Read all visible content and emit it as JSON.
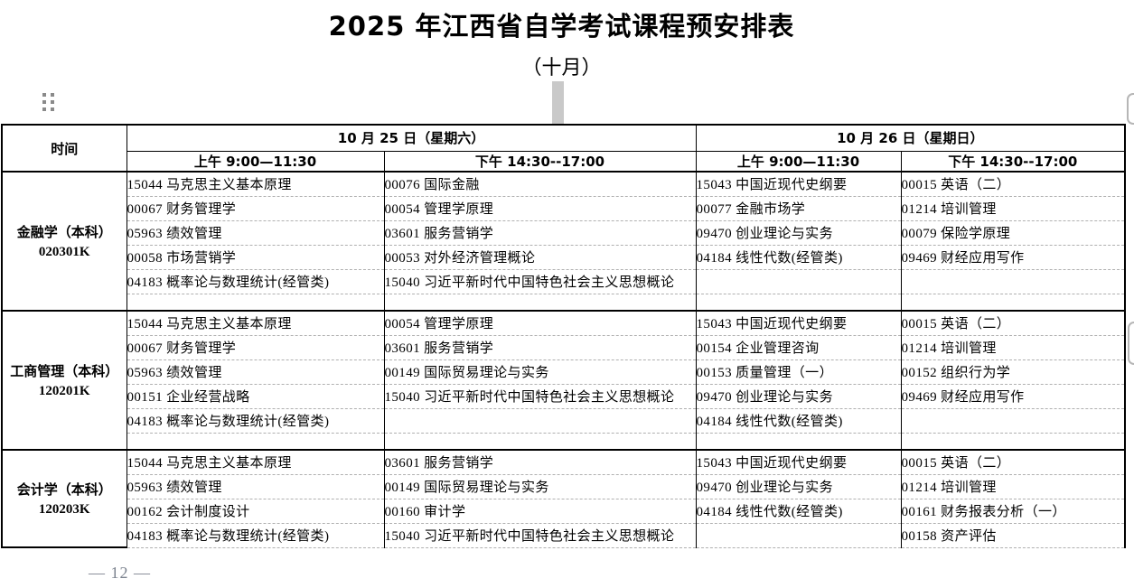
{
  "title": "2025 年江西省自学考试课程预安排表",
  "subtitle": "（十月）",
  "page_number": "— 12 —",
  "decorations": {
    "drag_handle_color": "#8a8a8a",
    "handle_bar_color": "#c9c9c9",
    "edge_button_border": "#b6b6b6",
    "page_number_color": "#7b828e"
  },
  "table": {
    "time_header": "时间",
    "days": [
      {
        "date": "10 月 25 日（星期六）",
        "sessions": [
          "上午 9:00—11:30",
          "下午 14:30--17:00"
        ]
      },
      {
        "date": "10 月 26 日（星期日）",
        "sessions": [
          "上午 9:00—11:30",
          "下午 14:30--17:00"
        ]
      }
    ],
    "groups": [
      {
        "program": "金融学（本科）",
        "code": "020301K",
        "rows": [
          [
            "15044 马克思主义基本原理",
            "00076 国际金融",
            "15043 中国近现代史纲要",
            "00015 英语（二）"
          ],
          [
            "00067 财务管理学",
            "00054 管理学原理",
            "00077 金融市场学",
            "01214 培训管理"
          ],
          [
            "05963 绩效管理",
            "03601 服务营销学",
            "09470 创业理论与实务",
            "00079 保险学原理"
          ],
          [
            "00058 市场营销学",
            "00053 对外经济管理概论",
            "04184 线性代数(经管类)",
            "09469 财经应用写作"
          ],
          [
            "04183 概率论与数理统计(经管类)",
            "15040 习近平新时代中国特色社会主义思想概论",
            "",
            ""
          ],
          [
            "",
            "",
            "",
            ""
          ]
        ]
      },
      {
        "program": "工商管理（本科）",
        "code": "120201K",
        "rows": [
          [
            "15044 马克思主义基本原理",
            "00054 管理学原理",
            "15043 中国近现代史纲要",
            "00015 英语（二）"
          ],
          [
            "00067 财务管理学",
            "03601 服务营销学",
            "00154 企业管理咨询",
            "01214 培训管理"
          ],
          [
            "05963 绩效管理",
            "00149 国际贸易理论与实务",
            "00153 质量管理（一）",
            "00152 组织行为学"
          ],
          [
            "00151 企业经营战略",
            "15040 习近平新时代中国特色社会主义思想概论",
            "09470 创业理论与实务",
            "09469 财经应用写作"
          ],
          [
            "04183 概率论与数理统计(经管类)",
            "",
            "04184 线性代数(经管类)",
            ""
          ],
          [
            "",
            "",
            "",
            ""
          ]
        ]
      },
      {
        "program": "会计学（本科）",
        "code": "120203K",
        "rows": [
          [
            "15044 马克思主义基本原理",
            "03601 服务营销学",
            "15043 中国近现代史纲要",
            "00015 英语（二）"
          ],
          [
            "05963 绩效管理",
            "00149 国际贸易理论与实务",
            "09470 创业理论与实务",
            "01214 培训管理"
          ],
          [
            "00162 会计制度设计",
            "00160 审计学",
            "04184 线性代数(经管类)",
            "00161 财务报表分析（一）"
          ],
          [
            "04183 概率论与数理统计(经管类)",
            "15040 习近平新时代中国特色社会主义思想概论",
            "",
            "00158 资产评估"
          ]
        ]
      }
    ]
  }
}
